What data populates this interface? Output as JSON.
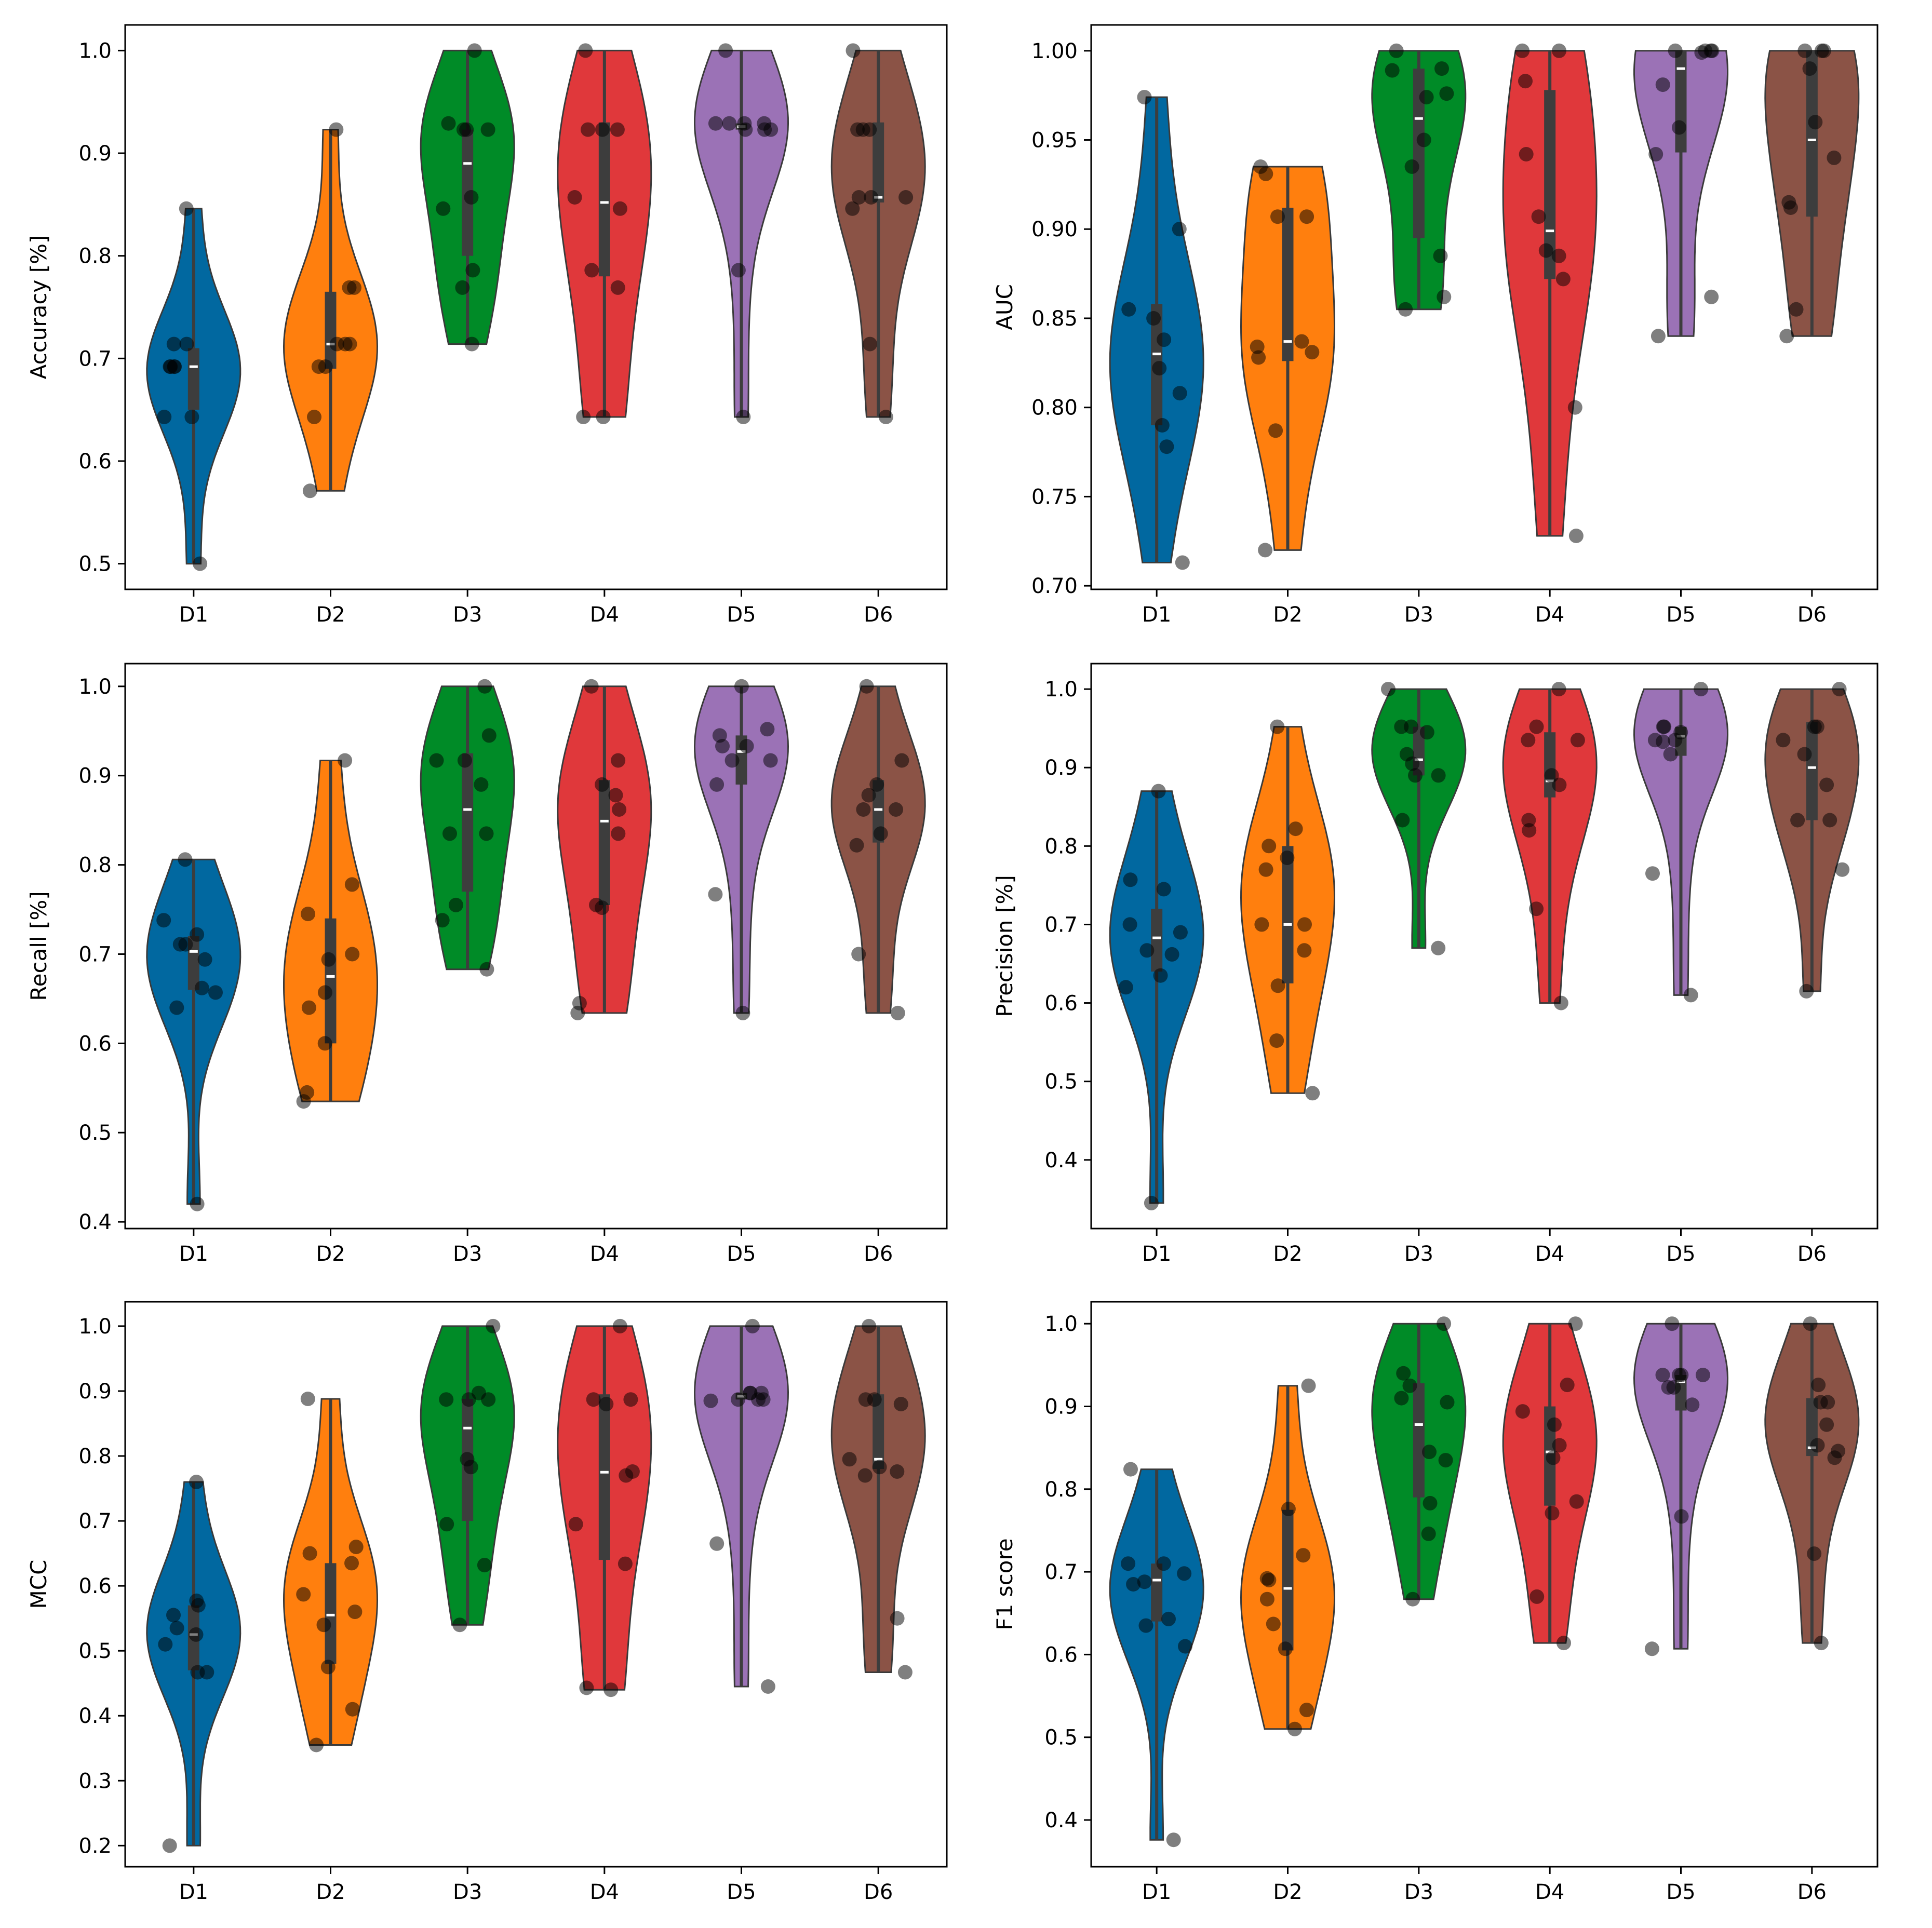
{
  "figure": {
    "background": "#ffffff"
  },
  "colors": [
    "#0168a0",
    "#ff7f0e",
    "#008b27",
    "#e0383b",
    "#9b72b6",
    "#8b5346"
  ],
  "chart_data": [
    {
      "type": "violin",
      "ylabel": "Accuracy [%]",
      "categories": [
        "D1",
        "D2",
        "D3",
        "D4",
        "D5",
        "D6"
      ],
      "ylim": [
        0.475,
        1.025
      ],
      "yticks": [
        "0.5",
        "0.6",
        "0.7",
        "0.8",
        "0.9",
        "1.0"
      ],
      "series": [
        {
          "category": "D1",
          "points": [
            0.714,
            0.643,
            0.643,
            0.5,
            0.714,
            0.692,
            0.692,
            0.692,
            0.846,
            0.692
          ],
          "median": 0.692,
          "q1": 0.65,
          "q3": 0.71
        },
        {
          "category": "D2",
          "points": [
            0.643,
            0.714,
            0.571,
            0.714,
            0.692,
            0.769,
            0.769,
            0.692,
            0.923,
            0.714
          ],
          "median": 0.714,
          "q1": 0.69,
          "q3": 0.765
        },
        {
          "category": "D3",
          "points": [
            0.714,
            1.0,
            0.857,
            0.929,
            0.786,
            0.846,
            0.923,
            0.923,
            0.769,
            0.923
          ],
          "median": 0.89,
          "q1": 0.8,
          "q3": 0.923
        },
        {
          "category": "D4",
          "points": [
            0.643,
            1.0,
            0.643,
            0.857,
            0.786,
            0.769,
            0.846,
            0.923,
            0.923,
            0.923
          ],
          "median": 0.852,
          "q1": 0.78,
          "q3": 0.93
        },
        {
          "category": "D5",
          "points": [
            0.643,
            0.929,
            0.929,
            0.786,
            0.929,
            0.929,
            1.0,
            0.923,
            0.923,
            0.923
          ],
          "median": 0.926,
          "q1": 0.923,
          "q3": 0.929
        },
        {
          "category": "D6",
          "points": [
            0.643,
            0.714,
            1.0,
            0.857,
            0.857,
            0.857,
            0.923,
            0.846,
            0.923,
            0.923
          ],
          "median": 0.857,
          "q1": 0.852,
          "q3": 0.93
        }
      ]
    },
    {
      "type": "violin",
      "ylabel": "AUC",
      "categories": [
        "D1",
        "D2",
        "D3",
        "D4",
        "D5",
        "D6"
      ],
      "ylim": [
        0.698,
        1.0145
      ],
      "yticks": [
        "0.70",
        "0.75",
        "0.80",
        "0.85",
        "0.90",
        "0.95",
        "1.00"
      ],
      "series": [
        {
          "category": "D1",
          "points": [
            0.79,
            0.855,
            0.713,
            0.808,
            0.838,
            0.778,
            0.9,
            0.85,
            0.822,
            0.974
          ],
          "median": 0.83,
          "q1": 0.79,
          "q3": 0.858
        },
        {
          "category": "D2",
          "points": [
            0.828,
            0.907,
            0.72,
            0.787,
            0.935,
            0.837,
            0.907,
            0.831,
            0.931,
            0.834
          ],
          "median": 0.837,
          "q1": 0.826,
          "q3": 0.912
        },
        {
          "category": "D3",
          "points": [
            0.855,
            1.0,
            0.862,
            0.95,
            0.976,
            0.935,
            0.974,
            0.99,
            0.885,
            0.989
          ],
          "median": 0.962,
          "q1": 0.895,
          "q3": 0.99
        },
        {
          "category": "D4",
          "points": [
            0.728,
            1.0,
            0.8,
            0.885,
            0.888,
            0.907,
            0.983,
            0.942,
            0.872,
            1.0
          ],
          "median": 0.899,
          "q1": 0.872,
          "q3": 0.978
        },
        {
          "category": "D5",
          "points": [
            0.84,
            1.0,
            0.862,
            0.942,
            1.0,
            0.957,
            0.999,
            0.981,
            1.0,
            1.0
          ],
          "median": 0.99,
          "q1": 0.943,
          "q3": 1.0
        },
        {
          "category": "D6",
          "points": [
            0.855,
            1.0,
            0.84,
            0.915,
            0.94,
            0.96,
            1.0,
            0.912,
            1.0,
            0.99
          ],
          "median": 0.95,
          "q1": 0.907,
          "q3": 1.0
        }
      ]
    },
    {
      "type": "violin",
      "ylabel": "Recall [%]",
      "categories": [
        "D1",
        "D2",
        "D3",
        "D4",
        "D5",
        "D6"
      ],
      "ylim": [
        0.3925,
        1.0255
      ],
      "yticks": [
        "0.4",
        "0.5",
        "0.6",
        "0.7",
        "0.8",
        "0.9",
        "1.0"
      ],
      "series": [
        {
          "category": "D1",
          "points": [
            0.662,
            0.711,
            0.42,
            0.657,
            0.711,
            0.722,
            0.694,
            0.64,
            0.806,
            0.738
          ],
          "median": 0.703,
          "q1": 0.66,
          "q3": 0.72
        },
        {
          "category": "D2",
          "points": [
            0.6,
            0.745,
            0.545,
            0.657,
            0.7,
            0.64,
            0.778,
            0.694,
            0.917,
            0.535
          ],
          "median": 0.675,
          "q1": 0.6,
          "q3": 0.74
        },
        {
          "category": "D3",
          "points": [
            0.683,
            1.0,
            0.835,
            0.945,
            0.755,
            0.835,
            0.917,
            0.917,
            0.738,
            0.89
          ],
          "median": 0.862,
          "q1": 0.77,
          "q3": 0.925
        },
        {
          "category": "D4",
          "points": [
            0.634,
            1.0,
            0.645,
            0.878,
            0.755,
            0.752,
            0.917,
            0.862,
            0.89,
            0.835
          ],
          "median": 0.849,
          "q1": 0.755,
          "q3": 0.895
        },
        {
          "category": "D5",
          "points": [
            0.634,
            0.933,
            0.767,
            0.89,
            0.933,
            0.945,
            0.917,
            1.0,
            0.917,
            0.952
          ],
          "median": 0.927,
          "q1": 0.89,
          "q3": 0.945
        },
        {
          "category": "D6",
          "points": [
            0.634,
            0.7,
            1.0,
            0.822,
            0.878,
            0.862,
            0.917,
            0.862,
            0.89,
            0.835
          ],
          "median": 0.862,
          "q1": 0.825,
          "q3": 0.895
        }
      ]
    },
    {
      "type": "violin",
      "ylabel": "Precision [%]",
      "categories": [
        "D1",
        "D2",
        "D3",
        "D4",
        "D5",
        "D6"
      ],
      "ylim": [
        0.3125,
        1.0325
      ],
      "yticks": [
        "0.4",
        "0.5",
        "0.6",
        "0.7",
        "0.8",
        "0.9",
        "1.0"
      ],
      "series": [
        {
          "category": "D1",
          "points": [
            0.635,
            0.7,
            0.345,
            0.662,
            0.745,
            0.69,
            0.757,
            0.62,
            0.87,
            0.667
          ],
          "median": 0.683,
          "q1": 0.64,
          "q3": 0.72
        },
        {
          "category": "D2",
          "points": [
            0.622,
            0.7,
            0.552,
            0.8,
            0.785,
            0.77,
            0.822,
            0.667,
            0.952,
            0.485,
            0.7
          ],
          "median": 0.7,
          "q1": 0.625,
          "q3": 0.8
        },
        {
          "category": "D3",
          "points": [
            0.67,
            1.0,
            0.905,
            0.945,
            0.89,
            0.89,
            0.952,
            0.917,
            0.833,
            0.952
          ],
          "median": 0.91,
          "q1": 0.89,
          "q3": 0.952
        },
        {
          "category": "D4",
          "points": [
            0.6,
            1.0,
            0.72,
            0.878,
            0.89,
            0.82,
            0.952,
            0.833,
            0.935,
            0.935
          ],
          "median": 0.883,
          "q1": 0.862,
          "q3": 0.945
        },
        {
          "category": "D5",
          "points": [
            0.61,
            0.952,
            0.765,
            0.945,
            0.935,
            0.917,
            0.952,
            1.0,
            0.935,
            0.933
          ],
          "median": 0.94,
          "q1": 0.915,
          "q3": 0.952
        },
        {
          "category": "D6",
          "points": [
            0.615,
            0.77,
            1.0,
            0.878,
            0.917,
            0.833,
            0.952,
            0.833,
            0.952,
            0.935
          ],
          "median": 0.9,
          "q1": 0.833,
          "q3": 0.958
        }
      ]
    },
    {
      "type": "violin",
      "ylabel": "MCC",
      "categories": [
        "D1",
        "D2",
        "D3",
        "D4",
        "D5",
        "D6"
      ],
      "ylim": [
        0.1675,
        1.0375
      ],
      "yticks": [
        "0.2",
        "0.3",
        "0.4",
        "0.5",
        "0.6",
        "0.7",
        "0.8",
        "0.9",
        "1.0"
      ],
      "series": [
        {
          "category": "D1",
          "points": [
            0.467,
            0.57,
            0.2,
            0.467,
            0.577,
            0.555,
            0.525,
            0.51,
            0.76,
            0.535
          ],
          "median": 0.525,
          "q1": 0.47,
          "q3": 0.57
        },
        {
          "category": "D2",
          "points": [
            0.41,
            0.587,
            0.355,
            0.56,
            0.65,
            0.54,
            0.66,
            0.635,
            0.888,
            0.475
          ],
          "median": 0.555,
          "q1": 0.48,
          "q3": 0.635
        },
        {
          "category": "D3",
          "points": [
            0.54,
            1.0,
            0.795,
            0.897,
            0.695,
            0.783,
            0.887,
            0.887,
            0.632,
            0.887
          ],
          "median": 0.843,
          "q1": 0.7,
          "q3": 0.888
        },
        {
          "category": "D4",
          "points": [
            0.443,
            1.0,
            0.44,
            0.776,
            0.695,
            0.634,
            0.77,
            0.887,
            0.887,
            0.88
          ],
          "median": 0.775,
          "q1": 0.64,
          "q3": 0.895
        },
        {
          "category": "D5",
          "points": [
            0.445,
            0.897,
            0.665,
            0.897,
            0.897,
            0.887,
            1.0,
            0.887,
            0.887,
            0.885
          ],
          "median": 0.892,
          "q1": 0.887,
          "q3": 0.897
        },
        {
          "category": "D6",
          "points": [
            0.467,
            0.55,
            1.0,
            0.783,
            0.795,
            0.776,
            0.887,
            0.77,
            0.887,
            0.88
          ],
          "median": 0.795,
          "q1": 0.78,
          "q3": 0.895
        }
      ]
    },
    {
      "type": "violin",
      "ylabel": "F1 score",
      "categories": [
        "D1",
        "D2",
        "D3",
        "D4",
        "D5",
        "D6"
      ],
      "ylim": [
        0.3435,
        1.0265
      ],
      "yticks": [
        "0.4",
        "0.5",
        "0.6",
        "0.7",
        "0.8",
        "0.9",
        "1.0"
      ],
      "series": [
        {
          "category": "D1",
          "points": [
            0.635,
            0.698,
            0.376,
            0.643,
            0.71,
            0.685,
            0.71,
            0.61,
            0.824,
            0.688
          ],
          "median": 0.69,
          "q1": 0.64,
          "q3": 0.71
        },
        {
          "category": "D2",
          "points": [
            0.607,
            0.692,
            0.533,
            0.667,
            0.72,
            0.637,
            0.776,
            0.69,
            0.925,
            0.51
          ],
          "median": 0.68,
          "q1": 0.605,
          "q3": 0.775
        },
        {
          "category": "D3",
          "points": [
            0.667,
            1.0,
            0.845,
            0.94,
            0.783,
            0.835,
            0.925,
            0.905,
            0.746,
            0.91
          ],
          "median": 0.878,
          "q1": 0.79,
          "q3": 0.928
        },
        {
          "category": "D4",
          "points": [
            0.614,
            1.0,
            0.67,
            0.878,
            0.785,
            0.771,
            0.926,
            0.838,
            0.894,
            0.853
          ],
          "median": 0.845,
          "q1": 0.78,
          "q3": 0.9
        },
        {
          "category": "D5",
          "points": [
            0.607,
            0.938,
            0.767,
            0.902,
            0.938,
            0.938,
            0.923,
            1.0,
            0.923,
            0.938
          ],
          "median": 0.93,
          "q1": 0.895,
          "q3": 0.938
        },
        {
          "category": "D6",
          "points": [
            0.614,
            0.722,
            1.0,
            0.878,
            0.905,
            0.846,
            0.926,
            0.838,
            0.905,
            0.853
          ],
          "median": 0.85,
          "q1": 0.84,
          "q3": 0.91
        }
      ]
    }
  ]
}
